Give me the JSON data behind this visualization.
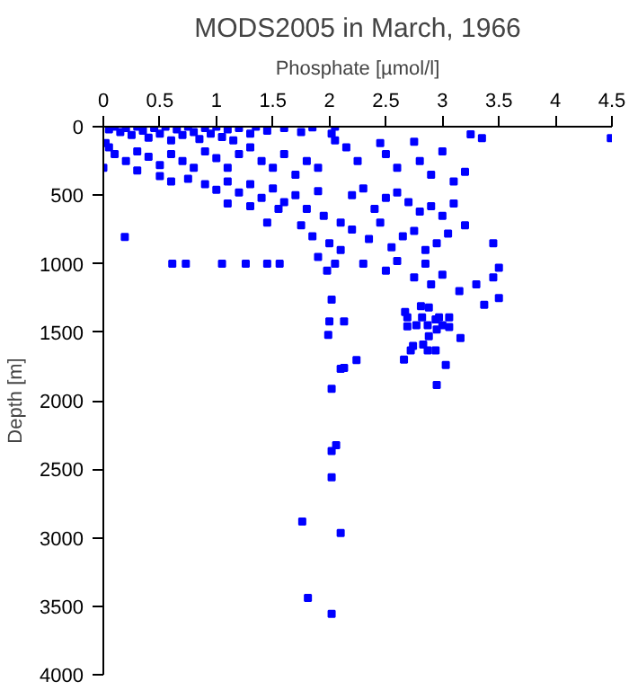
{
  "chart_data": {
    "type": "scatter",
    "title": "MODS2005 in March, 1966",
    "xlabel": "Phosphate [µmol/l]",
    "ylabel": "Depth [m]",
    "xlim": [
      0,
      4.5
    ],
    "ylim": [
      4000,
      0
    ],
    "xticks": [
      0,
      0.5,
      1,
      1.5,
      2,
      2.5,
      3,
      3.5,
      4,
      4.5
    ],
    "yticks": [
      0,
      500,
      1000,
      1500,
      2000,
      2500,
      3000,
      3500,
      4000
    ],
    "grid": false,
    "marker": "square",
    "series": [
      {
        "color": "#0000ff",
        "x": [
          0.02,
          0.05,
          0.1,
          0.15,
          0.2,
          0.25,
          0.3,
          0.35,
          0.4,
          0.45,
          0.5,
          0.55,
          0.6,
          0.65,
          0.7,
          0.75,
          0.8,
          0.85,
          0.9,
          0.95,
          1.0,
          1.05,
          1.1,
          1.15,
          1.2,
          1.3,
          1.35,
          1.45,
          1.6,
          1.75,
          1.85,
          2.05,
          2.02,
          2.05,
          2.15,
          0.05,
          0.1,
          0.2,
          0.0,
          0.3,
          0.4,
          0.5,
          0.6,
          0.7,
          0.8,
          0.9,
          1.0,
          1.1,
          1.2,
          1.3,
          1.4,
          1.5,
          1.6,
          1.7,
          1.8,
          1.9,
          0.3,
          0.5,
          0.6,
          0.75,
          0.9,
          1.0,
          1.1,
          1.2,
          1.3,
          1.4,
          1.5,
          1.55,
          1.6,
          1.7,
          1.8,
          1.9,
          1.95,
          1.3,
          1.1,
          1.45,
          1.75,
          1.85,
          2.0,
          1.9,
          2.05,
          1.98,
          2.1,
          2.1,
          2.2,
          2.3,
          2.4,
          2.5,
          2.6,
          2.7,
          2.8,
          2.9,
          3.0,
          3.1,
          2.2,
          2.35,
          2.45,
          2.55,
          2.65,
          2.75,
          2.85,
          2.95,
          3.05,
          3.2,
          2.3,
          2.5,
          2.6,
          2.75,
          2.85,
          2.9,
          3.0,
          3.15,
          3.3,
          3.45,
          3.5,
          3.45,
          3.5,
          2.25,
          2.5,
          2.6,
          2.8,
          2.9,
          3.0,
          3.1,
          3.2,
          2.45,
          2.75,
          3.25,
          3.35,
          4.49,
          0.19,
          0.61,
          0.73,
          1.05,
          1.26,
          1.45,
          1.56,
          2.02,
          2.0,
          2.13,
          1.99,
          2.1,
          2.13,
          2.24,
          2.02,
          2.06,
          2.02,
          2.02,
          1.76,
          2.1,
          1.81,
          2.02,
          2.67,
          2.69,
          2.69,
          2.77,
          2.82,
          2.87,
          2.94,
          2.97,
          3.06,
          3.0,
          3.06,
          2.95,
          2.88,
          3.16,
          2.83,
          2.74,
          2.72,
          2.87,
          2.94,
          2.66,
          3.03,
          2.95,
          3.37,
          2.81,
          2.88
        ],
        "values": [
          120,
          20,
          0,
          40,
          10,
          60,
          0,
          30,
          80,
          10,
          50,
          0,
          100,
          20,
          60,
          0,
          40,
          90,
          10,
          50,
          0,
          75,
          20,
          100,
          10,
          50,
          0,
          30,
          10,
          40,
          5,
          0,
          50,
          100,
          150,
          150,
          200,
          250,
          300,
          180,
          220,
          280,
          200,
          250,
          300,
          180,
          230,
          300,
          200,
          150,
          250,
          300,
          200,
          350,
          250,
          300,
          320,
          360,
          400,
          380,
          420,
          460,
          400,
          480,
          420,
          520,
          450,
          600,
          550,
          500,
          600,
          470,
          650,
          580,
          560,
          700,
          720,
          800,
          850,
          950,
          1000,
          1050,
          900,
          700,
          500,
          450,
          600,
          520,
          480,
          550,
          620,
          580,
          650,
          560,
          750,
          820,
          700,
          880,
          800,
          760,
          900,
          850,
          780,
          720,
          1000,
          1050,
          980,
          1100,
          1000,
          1150,
          1080,
          1200,
          1150,
          850,
          1030,
          1100,
          1250,
          250,
          200,
          300,
          250,
          350,
          180,
          400,
          330,
          120,
          110,
          56,
          84,
          84,
          805,
          1000,
          1000,
          1000,
          1000,
          1000,
          1000,
          1263,
          1422,
          1422,
          1520,
          1768,
          1760,
          1703,
          1913,
          2325,
          2367,
          2559,
          2882,
          2966,
          3439,
          3556,
          1352,
          1392,
          1457,
          1449,
          1392,
          1449,
          1407,
          1392,
          1392,
          1449,
          1463,
          1480,
          1530,
          1543,
          1590,
          1600,
          1632,
          1632,
          1632,
          1700,
          1740,
          1885,
          1300,
          1310,
          1320
        ]
      }
    ]
  }
}
